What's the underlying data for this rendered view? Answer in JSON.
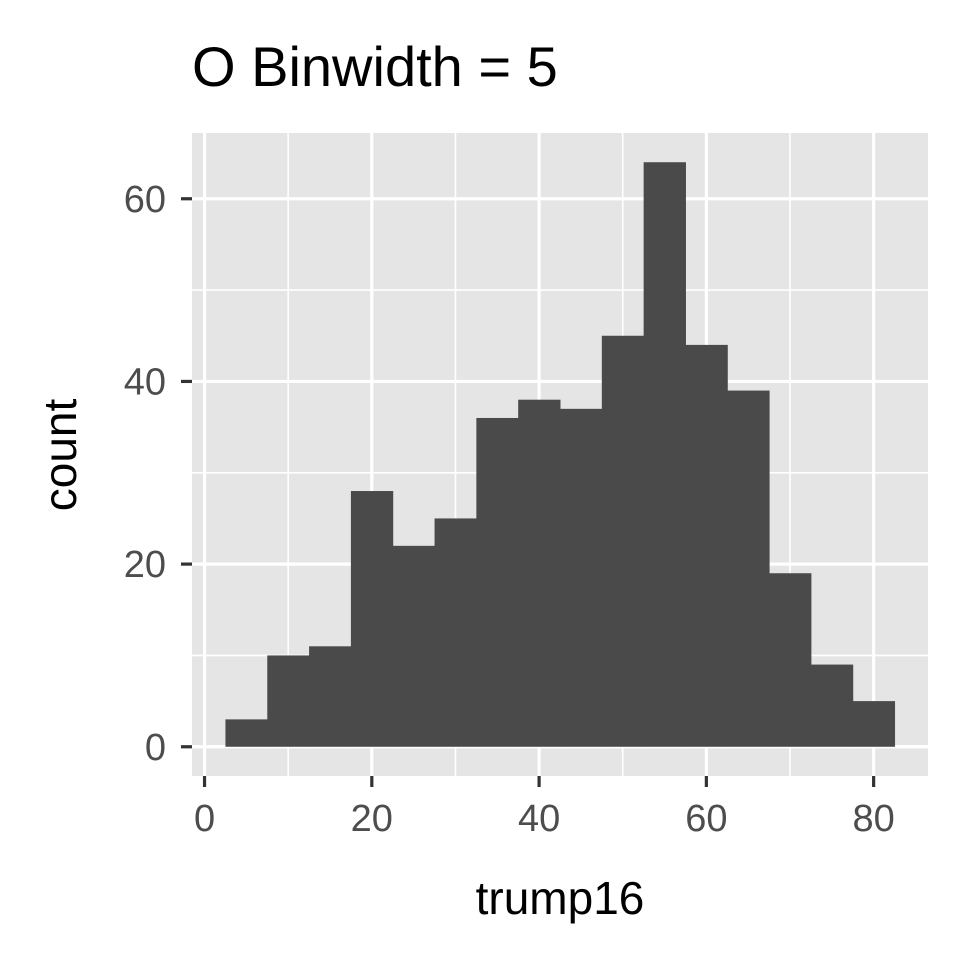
{
  "chart_data": {
    "type": "bar",
    "title": "O Binwidth = 5",
    "xlabel": "trump16",
    "ylabel": "count",
    "binwidth": 5,
    "bins": [
      {
        "x0": 2.5,
        "x1": 7.5,
        "count": 3
      },
      {
        "x0": 7.5,
        "x1": 12.5,
        "count": 10
      },
      {
        "x0": 12.5,
        "x1": 17.5,
        "count": 11
      },
      {
        "x0": 17.5,
        "x1": 22.5,
        "count": 28
      },
      {
        "x0": 22.5,
        "x1": 27.5,
        "count": 22
      },
      {
        "x0": 27.5,
        "x1": 32.5,
        "count": 25
      },
      {
        "x0": 32.5,
        "x1": 37.5,
        "count": 36
      },
      {
        "x0": 37.5,
        "x1": 42.5,
        "count": 38
      },
      {
        "x0": 42.5,
        "x1": 47.5,
        "count": 37
      },
      {
        "x0": 47.5,
        "x1": 52.5,
        "count": 45
      },
      {
        "x0": 52.5,
        "x1": 57.5,
        "count": 64
      },
      {
        "x0": 57.5,
        "x1": 62.5,
        "count": 44
      },
      {
        "x0": 62.5,
        "x1": 67.5,
        "count": 39
      },
      {
        "x0": 67.5,
        "x1": 72.5,
        "count": 19
      },
      {
        "x0": 72.5,
        "x1": 77.5,
        "count": 9
      },
      {
        "x0": 77.5,
        "x1": 82.5,
        "count": 5
      }
    ],
    "xlim": [
      -1.5,
      86.5
    ],
    "ylim": [
      -3.2,
      67.2
    ],
    "x_ticks": [
      0,
      20,
      40,
      60,
      80
    ],
    "x_tick_labels": [
      "0",
      "20",
      "40",
      "60",
      "80"
    ],
    "y_ticks": [
      0,
      20,
      40,
      60
    ],
    "y_tick_labels": [
      "0",
      "20",
      "40",
      "60"
    ],
    "grid": true,
    "legend": "none",
    "colors": {
      "bar_fill": "#4a4a4a",
      "panel_background": "#e5e5e5",
      "grid_line": "#ffffff",
      "tick_mark": "#333333",
      "tick_label": "#4d4d4d"
    }
  }
}
